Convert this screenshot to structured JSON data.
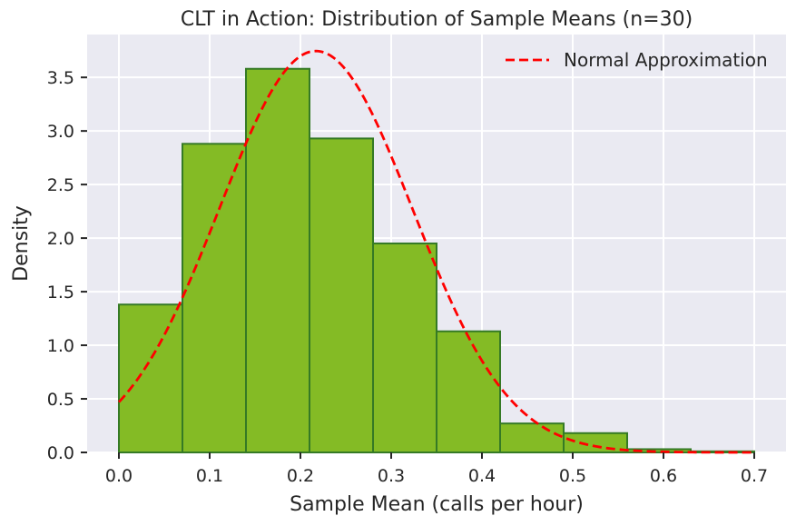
{
  "chart_data": {
    "type": "bar",
    "title": "CLT in Action: Distribution of Sample Means (n=30)",
    "xlabel": "Sample Mean (calls per hour)",
    "ylabel": "Density",
    "xlim": [
      -0.035,
      0.735
    ],
    "ylim": [
      0,
      3.9
    ],
    "xticks": [
      0.0,
      0.1,
      0.2,
      0.3,
      0.4,
      0.5,
      0.6,
      0.7
    ],
    "xtick_labels": [
      "0.0",
      "0.1",
      "0.2",
      "0.3",
      "0.4",
      "0.5",
      "0.6",
      "0.7"
    ],
    "yticks": [
      0.0,
      0.5,
      1.0,
      1.5,
      2.0,
      2.5,
      3.0,
      3.5
    ],
    "ytick_labels": [
      "0.0",
      "0.5",
      "1.0",
      "1.5",
      "2.0",
      "2.5",
      "3.0",
      "3.5"
    ],
    "grid": true,
    "histogram": {
      "name": "Sample Means",
      "bin_edges": [
        0.0,
        0.07,
        0.14,
        0.21,
        0.28,
        0.35,
        0.42,
        0.49,
        0.56,
        0.63,
        0.7
      ],
      "values": [
        1.38,
        2.88,
        3.58,
        2.93,
        1.95,
        1.13,
        0.27,
        0.18,
        0.03,
        0.01
      ],
      "fill_color": "#84bb25",
      "edge_color": "#357a25"
    },
    "normal_curve": {
      "name": "Normal Approximation",
      "mean": 0.217,
      "std": 0.1065,
      "x_range": [
        0.0,
        0.7
      ],
      "color": "#ff0000",
      "style": "dashed"
    },
    "legend": {
      "position": "top-right",
      "entries": [
        "Normal Approximation"
      ]
    },
    "colors": {
      "background": "#eaeaf2",
      "grid": "#ffffff",
      "text": "#262626"
    }
  }
}
